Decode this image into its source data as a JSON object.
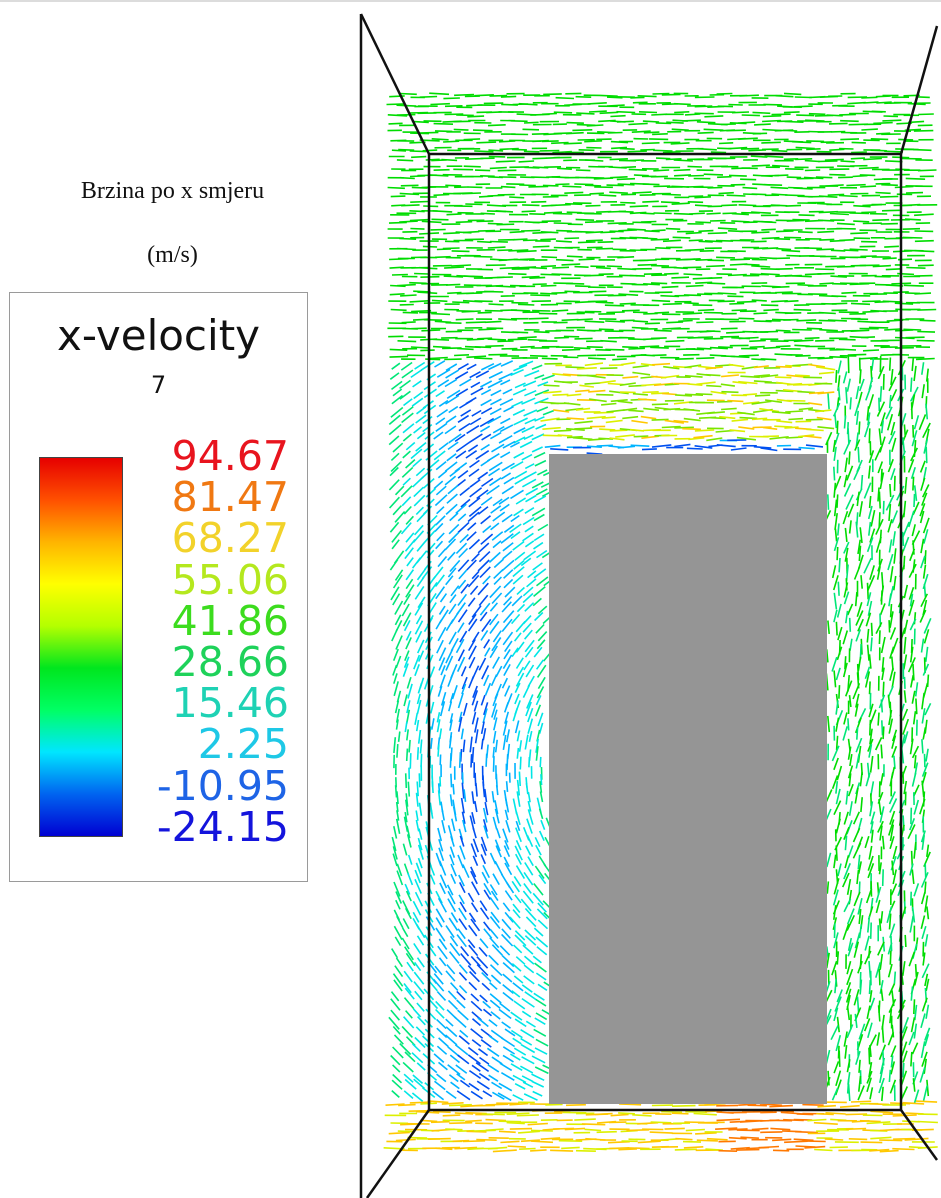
{
  "caption": {
    "line1": "Brzina po x smjeru",
    "line2": "(m/s)"
  },
  "legend": {
    "title": "x-velocity",
    "subtitle": "7",
    "ticks": [
      {
        "label": "94.67",
        "color": "#e8141e"
      },
      {
        "label": "81.47",
        "color": "#f07812"
      },
      {
        "label": "68.27",
        "color": "#f2d22a"
      },
      {
        "label": "55.06",
        "color": "#b4e81e"
      },
      {
        "label": "41.86",
        "color": "#3cdc1e"
      },
      {
        "label": "28.66",
        "color": "#1ed25a"
      },
      {
        "label": "15.46",
        "color": "#1ed2b4"
      },
      {
        "label": "2.25",
        "color": "#1ec8e6"
      },
      {
        "label": "-10.95",
        "color": "#1e64e6"
      },
      {
        "label": "-24.15",
        "color": "#1414dc"
      }
    ],
    "colorbar_stops": [
      "#0000d2",
      "#0064f0",
      "#00e6ff",
      "#00ff64",
      "#00e61e",
      "#b4ff00",
      "#ffff00",
      "#ffb400",
      "#ff5000",
      "#e60000"
    ]
  },
  "colors": {
    "obstacle": "#959595",
    "frame": "#111111"
  }
}
